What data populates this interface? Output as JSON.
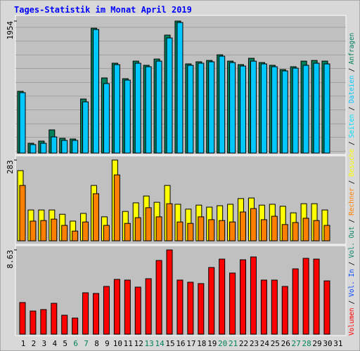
{
  "title": "Tages-Statistik im Monat April 2019",
  "legend_separator": "/",
  "chart_data": [
    {
      "type": "bar",
      "ylim": [
        0,
        1954
      ],
      "yticks": [
        1954
      ],
      "series": [
        {
          "name": "Anfragen",
          "color": "#00805c",
          "values": [
            914,
            145,
            177,
            343,
            218,
            208,
            800,
            1849,
            1112,
            1330,
            1101,
            1361,
            1299,
            1392,
            1746,
            1954,
            1320,
            1351,
            1371,
            1455,
            1361,
            1309,
            1403,
            1340,
            1299,
            1236,
            1278,
            1361,
            1371,
            1361,
            null
          ]
        },
        {
          "name": "Dateien",
          "color": "#00c8ff",
          "values": [
            894,
            125,
            145,
            239,
            187,
            187,
            758,
            1829,
            1029,
            1309,
            1080,
            1330,
            1278,
            1361,
            1704,
            1933,
            1299,
            1330,
            1351,
            1434,
            1340,
            1288,
            1361,
            1320,
            1278,
            1216,
            1257,
            1299,
            1330,
            1320,
            null
          ]
        },
        {
          "name": "Seiten",
          "color": "#00e0ff",
          "values": [
            null,
            null,
            null,
            null,
            null,
            null,
            null,
            null,
            null,
            null,
            null,
            null,
            null,
            null,
            null,
            null,
            null,
            null,
            null,
            null,
            null,
            null,
            null,
            null,
            null,
            null,
            null,
            null,
            null,
            null,
            null
          ]
        }
      ]
    },
    {
      "type": "bar",
      "ylim": [
        0,
        283
      ],
      "yticks": [
        283
      ],
      "series": [
        {
          "name": "Besuche",
          "color": "#ffff00",
          "values": [
            246,
            108,
            108,
            108,
            93,
            69,
            96,
            194,
            84,
            283,
            103,
            133,
            157,
            135,
            194,
            128,
            111,
            125,
            118,
            123,
            128,
            148,
            150,
            125,
            128,
            121,
            98,
            130,
            130,
            108,
            null
          ]
        },
        {
          "name": "Rechner",
          "color": "#ff8000",
          "values": [
            194,
            69,
            71,
            76,
            54,
            34,
            66,
            165,
            54,
            231,
            61,
            81,
            116,
            84,
            130,
            66,
            61,
            84,
            74,
            71,
            66,
            101,
            113,
            74,
            86,
            57,
            64,
            79,
            71,
            54,
            null
          ]
        }
      ]
    },
    {
      "type": "bar",
      "ylim": [
        0,
        8.63
      ],
      "yticks": [
        8.63
      ],
      "categories": [
        "1",
        "2",
        "3",
        "4",
        "5",
        "6",
        "7",
        "8",
        "9",
        "10",
        "11",
        "12",
        "13",
        "14",
        "15",
        "16",
        "17",
        "18",
        "19",
        "20",
        "21",
        "22",
        "23",
        "24",
        "25",
        "26",
        "27",
        "28",
        "29",
        "30",
        "31"
      ],
      "category_colors": [
        "#000000",
        "#000000",
        "#000000",
        "#000000",
        "#000000",
        "#00805c",
        "#00805c",
        "#000000",
        "#000000",
        "#000000",
        "#000000",
        "#000000",
        "#00805c",
        "#00805c",
        "#000000",
        "#000000",
        "#000000",
        "#000000",
        "#000000",
        "#00805c",
        "#00805c",
        "#000000",
        "#000000",
        "#000000",
        "#000000",
        "#000000",
        "#00805c",
        "#00805c",
        "#000000",
        "#000000",
        "#000000"
      ],
      "series": [
        {
          "name": "Vol. Out",
          "color": "#00805c",
          "values": [
            null,
            null,
            null,
            null,
            null,
            null,
            null,
            null,
            null,
            null,
            null,
            null,
            null,
            null,
            null,
            null,
            null,
            null,
            null,
            null,
            null,
            null,
            null,
            null,
            null,
            null,
            null,
            null,
            null,
            null,
            null
          ]
        },
        {
          "name": "Vol. In",
          "color": "#0040ff",
          "values": [
            null,
            null,
            null,
            null,
            null,
            null,
            null,
            null,
            null,
            null,
            null,
            null,
            null,
            null,
            null,
            null,
            null,
            null,
            null,
            null,
            null,
            null,
            null,
            null,
            null,
            null,
            null,
            null,
            null,
            null,
            null
          ]
        },
        {
          "name": "Volumen",
          "color": "#ff0000",
          "values": [
            3.24,
            2.37,
            2.52,
            3.16,
            1.94,
            1.65,
            4.24,
            4.17,
            4.89,
            5.61,
            5.54,
            4.82,
            5.68,
            7.55,
            8.63,
            5.54,
            5.32,
            5.18,
            6.83,
            7.69,
            6.26,
            7.62,
            7.91,
            5.54,
            5.54,
            4.89,
            6.69,
            7.77,
            7.69,
            5.46,
            null
          ]
        }
      ]
    }
  ]
}
